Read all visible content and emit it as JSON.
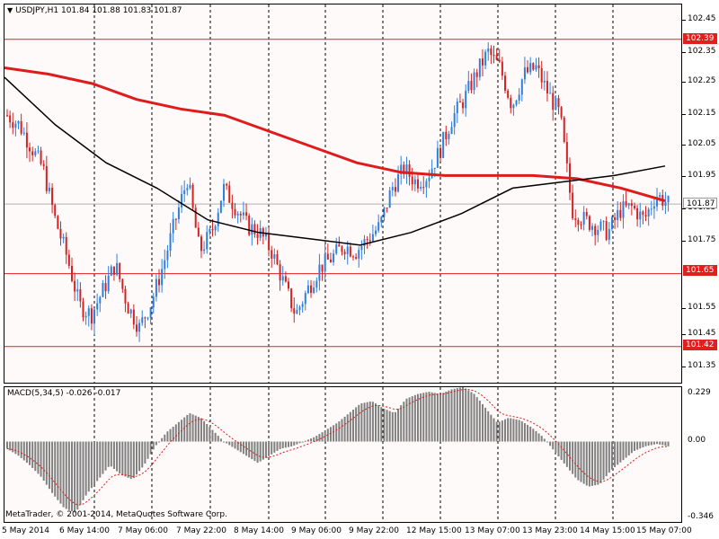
{
  "chart_title": "USDJPY,H1  101.84 101.88 101.83 101.87",
  "macd_title": "MACD(5,34,5) -0.026 -0.017",
  "copyright": "MetaTrader, © 2001-2014, MetaQuotes Software Corp.",
  "current_price": "101.87",
  "price_levels": [
    "102.45",
    "102.35",
    "102.25",
    "102.15",
    "102.05",
    "101.95",
    "101.85",
    "101.75",
    "101.55",
    "101.45",
    "101.35"
  ],
  "hlines": [
    {
      "label": "102.39",
      "price": 102.39
    },
    {
      "label": "101.65",
      "price": 101.65
    },
    {
      "label": "101.42",
      "price": 101.42
    }
  ],
  "macd_levels": [
    "0.229",
    "0.00",
    "-0.346"
  ],
  "time_labels": [
    "5 May 2014",
    "6 May 14:00",
    "7 May 06:00",
    "7 May 22:00",
    "8 May 14:00",
    "9 May 06:00",
    "9 May 22:00",
    "12 May 15:00",
    "13 May 07:00",
    "13 May 23:00",
    "14 May 15:00",
    "15 May 07:00"
  ],
  "colors": {
    "bull": "#2f7fdf",
    "bear": "#d42222",
    "ma_fast": "#e01b1b",
    "ma_slow": "#000000",
    "hline": "#e21f1f",
    "histogram": "#808080",
    "signal": "#e01b1b"
  },
  "chart_data": {
    "type": "line",
    "symbol": "USDJPY",
    "timeframe": "H1",
    "ohlc_last": {
      "open": 101.84,
      "high": 101.88,
      "low": 101.83,
      "close": 101.87
    },
    "price_range": [
      101.3,
      102.5
    ],
    "macd_range": [
      -0.346,
      0.229
    ],
    "close_path": [
      102.15,
      102.12,
      102.05,
      101.98,
      101.82,
      101.7,
      101.55,
      101.52,
      101.6,
      101.68,
      101.55,
      101.48,
      101.56,
      101.68,
      101.82,
      101.95,
      101.72,
      101.78,
      101.92,
      101.86,
      101.8,
      101.78,
      101.72,
      101.62,
      101.52,
      101.6,
      101.67,
      101.7,
      101.74,
      101.72,
      101.76,
      101.8,
      101.92,
      101.98,
      101.94,
      101.96,
      102.04,
      102.14,
      102.2,
      102.28,
      102.35,
      102.3,
      102.18,
      102.28,
      102.3,
      102.22,
      102.15,
      101.85,
      101.82,
      101.8,
      101.78,
      101.85,
      101.86,
      101.82,
      101.9,
      101.87
    ],
    "ma_fast": [
      102.3,
      102.28,
      102.25,
      102.2,
      102.17,
      102.15,
      102.1,
      102.05,
      102.0,
      101.97,
      101.96,
      101.96,
      101.96,
      101.95,
      101.92,
      101.88
    ],
    "ma_slow": [
      102.27,
      102.12,
      102.0,
      101.92,
      101.82,
      101.78,
      101.76,
      101.74,
      101.78,
      101.84,
      101.92,
      101.94,
      101.96,
      101.99
    ],
    "macd_histogram": [
      -0.03,
      -0.06,
      -0.1,
      -0.15,
      -0.22,
      -0.28,
      -0.3,
      -0.22,
      -0.16,
      -0.1,
      -0.14,
      -0.16,
      -0.1,
      -0.02,
      0.04,
      0.08,
      0.12,
      0.1,
      0.05,
      0.0,
      -0.03,
      -0.06,
      -0.09,
      -0.06,
      -0.03,
      -0.02,
      0.0,
      0.02,
      0.05,
      0.08,
      0.12,
      0.16,
      0.17,
      0.14,
      0.12,
      0.18,
      0.2,
      0.21,
      0.2,
      0.22,
      0.23,
      0.2,
      0.14,
      0.08,
      0.1,
      0.09,
      0.06,
      0.02,
      -0.04,
      -0.1,
      -0.16,
      -0.19,
      -0.18,
      -0.12,
      -0.08,
      -0.04,
      -0.02,
      -0.01,
      -0.02
    ]
  }
}
